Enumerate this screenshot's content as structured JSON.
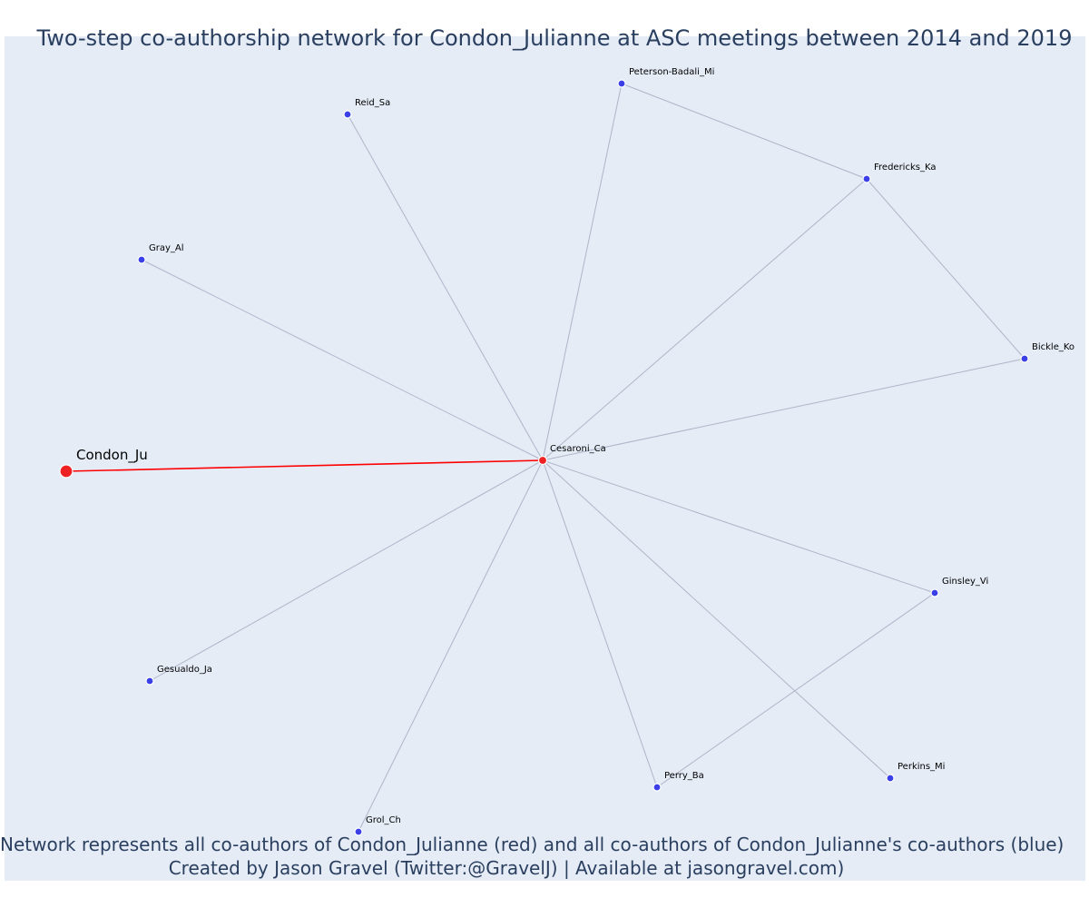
{
  "title": "Two-step co-authorship network for Condon_Julianne at ASC meetings between 2014 and 2019",
  "caption": {
    "line1": "Network represents all co-authors of Condon_Julianne (red) and all co-authors of Condon_Julianne's co-authors (blue)",
    "line2": "Created by Jason Gravel (Twitter:@GravelJ) | Available at jasongravel.com)"
  },
  "colors": {
    "background": "#e5ecf6",
    "focal_edge": "#ff0000",
    "other_edge": "#b0b4c8",
    "coauthor_node": "#ee2222",
    "second_step_node": "#3b3fe8"
  },
  "nodes": [
    {
      "id": "Condon_Ju",
      "label": "Condon_Ju",
      "group": "focal"
    },
    {
      "id": "Cesaroni_Ca",
      "label": "Cesaroni_Ca",
      "group": "coauthor"
    },
    {
      "id": "Peterson-Badali_Mi",
      "label": "Peterson-Badali_Mi",
      "group": "second"
    },
    {
      "id": "Reid_Sa",
      "label": "Reid_Sa",
      "group": "second"
    },
    {
      "id": "Fredericks_Ka",
      "label": "Fredericks_Ka",
      "group": "second"
    },
    {
      "id": "Gray_Al",
      "label": "Gray_Al",
      "group": "second"
    },
    {
      "id": "Bickle_Ko",
      "label": "Bickle_Ko",
      "group": "second"
    },
    {
      "id": "Ginsley_Vi",
      "label": "Ginsley_Vi",
      "group": "second"
    },
    {
      "id": "Gesualdo_Ja",
      "label": "Gesualdo_Ja",
      "group": "second"
    },
    {
      "id": "Perkins_Mi",
      "label": "Perkins_Mi",
      "group": "second"
    },
    {
      "id": "Perry_Ba",
      "label": "Perry_Ba",
      "group": "second"
    },
    {
      "id": "Grol_Ch",
      "label": "Grol_Ch",
      "group": "second"
    }
  ],
  "edges": [
    {
      "source": "Condon_Ju",
      "target": "Cesaroni_Ca",
      "type": "focal"
    },
    {
      "source": "Cesaroni_Ca",
      "target": "Peterson-Badali_Mi",
      "type": "other"
    },
    {
      "source": "Cesaroni_Ca",
      "target": "Reid_Sa",
      "type": "other"
    },
    {
      "source": "Cesaroni_Ca",
      "target": "Fredericks_Ka",
      "type": "other"
    },
    {
      "source": "Cesaroni_Ca",
      "target": "Gray_Al",
      "type": "other"
    },
    {
      "source": "Cesaroni_Ca",
      "target": "Bickle_Ko",
      "type": "other"
    },
    {
      "source": "Cesaroni_Ca",
      "target": "Ginsley_Vi",
      "type": "other"
    },
    {
      "source": "Cesaroni_Ca",
      "target": "Gesualdo_Ja",
      "type": "other"
    },
    {
      "source": "Cesaroni_Ca",
      "target": "Perkins_Mi",
      "type": "other"
    },
    {
      "source": "Cesaroni_Ca",
      "target": "Perry_Ba",
      "type": "other"
    },
    {
      "source": "Cesaroni_Ca",
      "target": "Grol_Ch",
      "type": "other"
    },
    {
      "source": "Peterson-Badali_Mi",
      "target": "Fredericks_Ka",
      "type": "other"
    },
    {
      "source": "Fredericks_Ka",
      "target": "Bickle_Ko",
      "type": "other"
    },
    {
      "source": "Ginsley_Vi",
      "target": "Perry_Ba",
      "type": "other"
    }
  ]
}
